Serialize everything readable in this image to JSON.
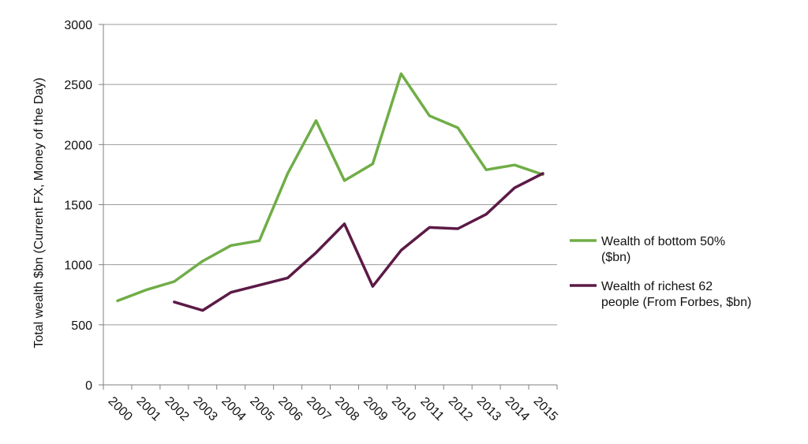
{
  "chart_data": {
    "type": "line",
    "ylabel": "Total wealth $bn (Current FX, Money of the Day)",
    "xlabel": "",
    "ylim": [
      0,
      3000
    ],
    "yticks": [
      0,
      500,
      1000,
      1500,
      2000,
      2500,
      3000
    ],
    "grid": "horizontal",
    "legend_position": "right",
    "categories": [
      "2000",
      "2001",
      "2002",
      "2003",
      "2004",
      "2005",
      "2006",
      "2007",
      "2008",
      "2009",
      "2010",
      "2011",
      "2012",
      "2013",
      "2014",
      "2015"
    ],
    "series": [
      {
        "name": "Wealth of bottom 50% ($bn)",
        "legend_lines": [
          "Wealth of bottom 50%",
          "($bn)"
        ],
        "color": "#70ad47",
        "values": [
          700,
          790,
          860,
          1030,
          1160,
          1200,
          1760,
          2200,
          1700,
          1840,
          2590,
          2240,
          2140,
          1790,
          1830,
          1750
        ]
      },
      {
        "name": "Wealth of richest 62 people (From Forbes, $bn)",
        "legend_lines": [
          "Wealth of richest 62",
          "people (From Forbes, $bn)"
        ],
        "color": "#5c1a46",
        "values": [
          null,
          null,
          690,
          620,
          770,
          830,
          890,
          1100,
          1340,
          820,
          1120,
          1310,
          1300,
          1420,
          1640,
          1760
        ]
      }
    ]
  }
}
